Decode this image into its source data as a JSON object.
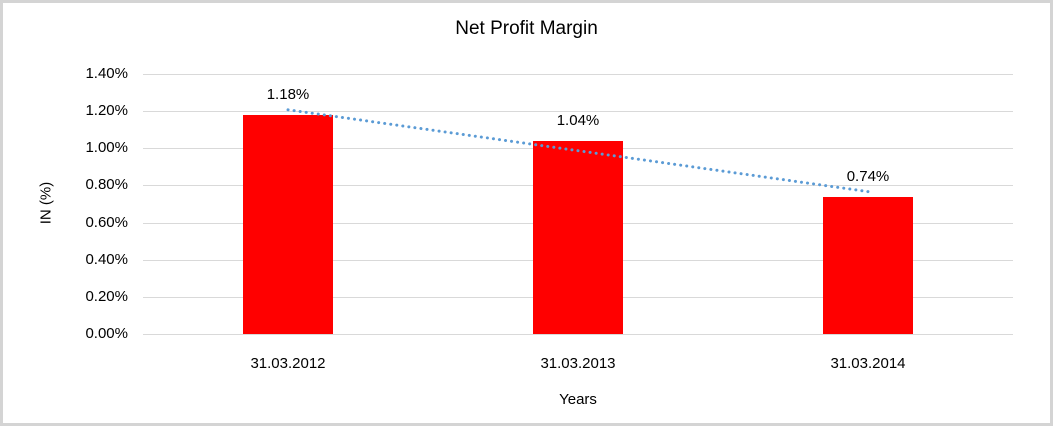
{
  "frame": {
    "background_color": "#ffffff",
    "border_color": "#d4d4d4"
  },
  "chart_data": {
    "type": "bar",
    "title": "Net Profit Margin",
    "xlabel": "Years",
    "ylabel": "IN (%)",
    "categories": [
      "31.03.2012",
      "31.03.2013",
      "31.03.2014"
    ],
    "values": [
      1.18,
      1.04,
      0.74
    ],
    "value_labels": [
      "1.18%",
      "1.04%",
      "0.74%"
    ],
    "ylim": [
      0,
      1.4
    ],
    "y_tick_step": 0.2,
    "y_tick_labels": [
      "0.00%",
      "0.20%",
      "0.40%",
      "0.60%",
      "0.80%",
      "1.00%",
      "1.20%",
      "1.40%"
    ],
    "grid": true,
    "legend_position": "none",
    "bar_color": "#ff0000",
    "gridline_color": "#d9d9d9",
    "text_color": "#000000",
    "trendline": {
      "type": "linear",
      "style": "dotted",
      "color": "#5b9bd5",
      "fit_values": [
        1.207,
        0.987,
        0.767
      ]
    }
  }
}
